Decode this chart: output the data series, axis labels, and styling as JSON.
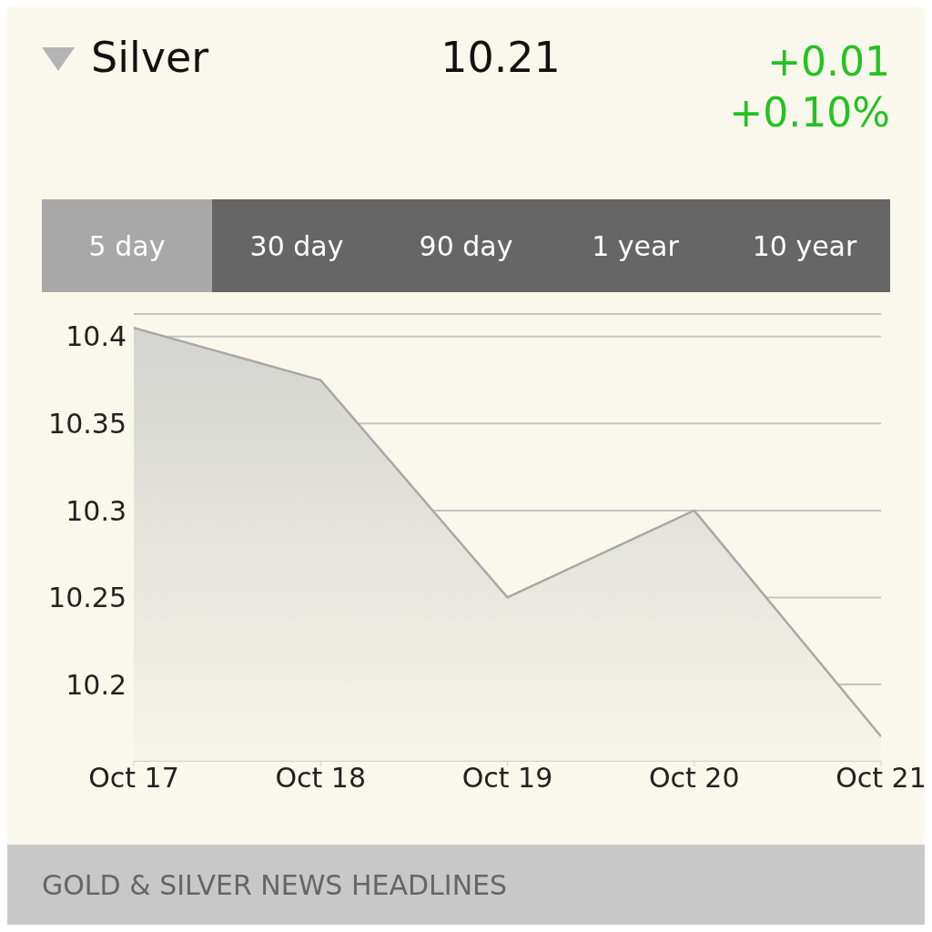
{
  "chart_data": {
    "type": "area",
    "title": "Silver",
    "annotations": [
      "10.21",
      "+0.01",
      "+0.10%",
      "5 day",
      "30 day",
      "90 day",
      "1 year",
      "10 year",
      "GOLD & SILVER NEWS HEADLINES"
    ],
    "categories": [
      "Oct 17",
      "Oct 18",
      "Oct 19",
      "Oct 20",
      "Oct 21"
    ],
    "values": [
      10.405,
      10.375,
      10.25,
      10.3,
      10.17
    ],
    "color": "#a8a8a8",
    "ylim": [
      10.156,
      10.413
    ],
    "yticks": [
      10.2,
      10.25,
      10.3,
      10.35,
      10.4
    ],
    "grid": "y"
  }
}
